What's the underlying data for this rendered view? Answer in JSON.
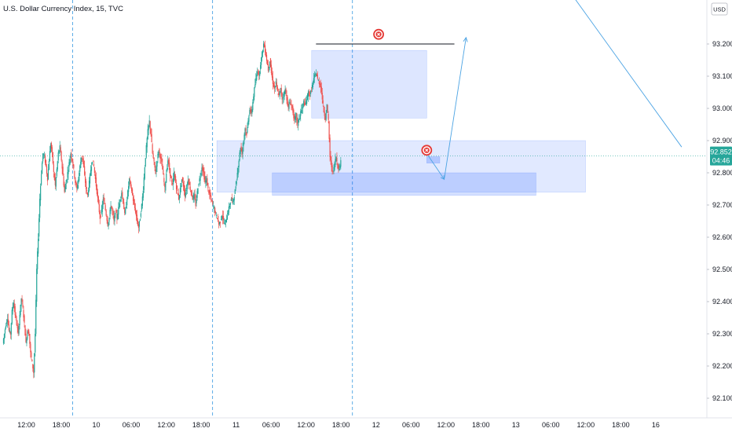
{
  "header": {
    "title": "U.S. Dollar Currency Index, 15, TVC",
    "currency_button": "USD"
  },
  "current_price": {
    "value": "92.852",
    "countdown": "04:46",
    "color": "#26a69a"
  },
  "colors": {
    "up": "#26a69a",
    "down": "#ef5350",
    "zone_fill": "#2962ff",
    "projection_line": "#4ba3e3",
    "session_line": "#4ba3e3",
    "marker": "#e53935"
  },
  "chart_data": {
    "type": "candlestick",
    "y_axis": {
      "ticks": [
        92.1,
        92.2,
        92.3,
        92.4,
        92.5,
        92.6,
        92.7,
        92.8,
        92.9,
        93.0,
        93.1,
        93.2
      ],
      "tick_labels": [
        "92.100",
        "92.200",
        "92.300",
        "92.400",
        "92.500",
        "92.600",
        "92.700",
        "92.800",
        "92.900",
        "93.000",
        "93.100",
        "93.200"
      ],
      "range": [
        92.07,
        93.29
      ]
    },
    "x_axis": {
      "tick_labels": [
        "12:00",
        "18:00",
        "10",
        "06:00",
        "12:00",
        "18:00",
        "11",
        "06:00",
        "12:00",
        "18:00",
        "12",
        "06:00",
        "12:00",
        "18:00",
        "13",
        "06:00",
        "12:00",
        "18:00",
        "16"
      ],
      "tick_steps": [
        0,
        24,
        48,
        72,
        96,
        120,
        144,
        168,
        192,
        216,
        240,
        264,
        288,
        312,
        336,
        360,
        384,
        408,
        432
      ],
      "session_separators": [
        "10",
        "11",
        "12"
      ]
    },
    "series_close": [
      92.27,
      92.3,
      92.33,
      92.35,
      92.31,
      92.3,
      92.37,
      92.4,
      92.36,
      92.33,
      92.3,
      92.36,
      92.41,
      92.38,
      92.33,
      92.27,
      92.31,
      92.3,
      92.24,
      92.21,
      92.18,
      92.3,
      92.5,
      92.6,
      92.72,
      92.8,
      92.86,
      92.85,
      92.82,
      92.78,
      92.84,
      92.89,
      92.86,
      92.8,
      92.76,
      92.81,
      92.86,
      92.88,
      92.84,
      92.79,
      92.74,
      92.77,
      92.8,
      92.83,
      92.86,
      92.84,
      92.81,
      92.77,
      92.75,
      92.78,
      92.82,
      92.85,
      92.84,
      92.79,
      92.75,
      92.73,
      92.77,
      92.81,
      92.84,
      92.82,
      92.78,
      92.74,
      92.7,
      92.66,
      92.68,
      92.72,
      92.7,
      92.67,
      92.64,
      92.66,
      92.7,
      92.68,
      92.65,
      92.68,
      92.66,
      92.69,
      92.72,
      92.74,
      92.71,
      92.67,
      92.7,
      92.74,
      92.78,
      92.76,
      92.73,
      92.7,
      92.68,
      92.65,
      92.63,
      92.66,
      92.7,
      92.75,
      92.82,
      92.88,
      92.93,
      92.96,
      92.92,
      92.86,
      92.83,
      92.8,
      92.84,
      92.87,
      92.85,
      92.83,
      92.79,
      92.75,
      92.8,
      92.84,
      92.81,
      92.78,
      92.76,
      92.8,
      92.77,
      92.74,
      92.72,
      92.75,
      92.78,
      92.76,
      92.73,
      92.75,
      92.78,
      92.76,
      92.74,
      92.72,
      92.73,
      92.7,
      92.74,
      92.77,
      92.79,
      92.82,
      92.8,
      92.77,
      92.78,
      92.75,
      92.73,
      92.72,
      92.7,
      92.69,
      92.67,
      92.66,
      92.64,
      92.65,
      92.67,
      92.65,
      92.64,
      92.66,
      92.68,
      92.7,
      92.72,
      92.71,
      92.73,
      92.76,
      92.8,
      92.84,
      92.88,
      92.86,
      92.9,
      92.94,
      92.92,
      92.96,
      93.0,
      92.98,
      93.02,
      93.06,
      93.09,
      93.12,
      93.1,
      93.14,
      93.17,
      93.2,
      93.18,
      93.15,
      93.12,
      93.15,
      93.11,
      93.08,
      93.06,
      93.08,
      93.05,
      93.04,
      93.06,
      93.03,
      93.04,
      93.06,
      93.03,
      93.0,
      93.02,
      93.01,
      92.99,
      92.96,
      92.98,
      92.95,
      92.97,
      92.99,
      93.0,
      93.02,
      93.01,
      93.03,
      93.05,
      93.04,
      93.06,
      93.08,
      93.1,
      93.11,
      93.09,
      93.08,
      93.07,
      93.03,
      92.99,
      92.97,
      93.01,
      92.96,
      92.85,
      92.82,
      92.8,
      92.83,
      92.85,
      92.82,
      92.81,
      92.84
    ],
    "zones": [
      {
        "start": 212,
        "end": 291,
        "top": 93.18,
        "bottom": 92.97
      },
      {
        "start": 147,
        "end": 400,
        "top": 92.9,
        "bottom": 92.74
      },
      {
        "start": 185,
        "end": 366,
        "top": 92.8,
        "bottom": 92.73
      },
      {
        "start": 291,
        "end": 300,
        "top": 92.85,
        "bottom": 92.83
      }
    ],
    "resistance_line": {
      "start": 215,
      "end": 310,
      "value": 93.2
    },
    "projection_path": [
      [
        291,
        92.86
      ],
      [
        303,
        92.78
      ],
      [
        318,
        93.22
      ]
    ],
    "trend_line": [
      [
        388,
        93.37
      ],
      [
        466,
        92.88
      ]
    ],
    "markers": [
      {
        "step": 258,
        "value": 93.23
      },
      {
        "step": 291,
        "value": 92.87
      }
    ]
  }
}
